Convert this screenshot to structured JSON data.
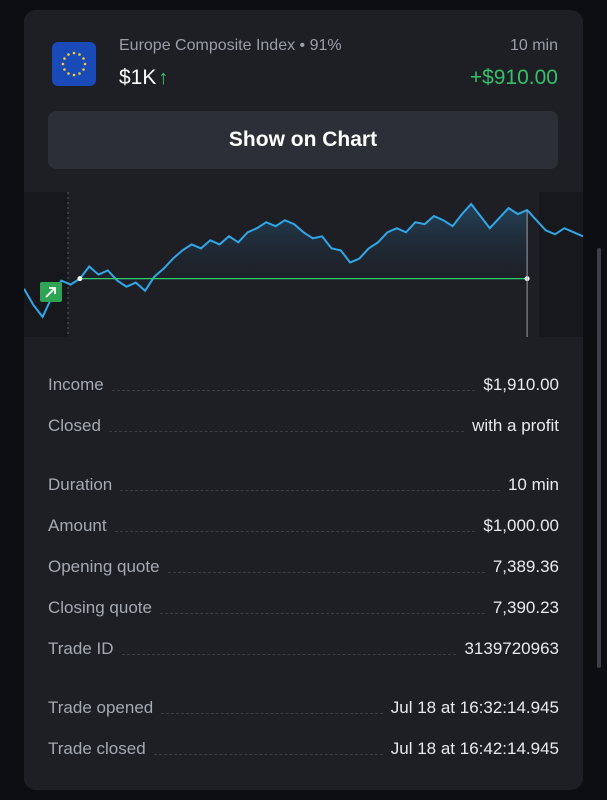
{
  "trade": {
    "asset_name": "Europe Composite Index • 91%",
    "amount_short": "$1K",
    "arrow": "↑",
    "duration": "10 min",
    "profit": "+$910.00",
    "icon": "eu-flag-icon"
  },
  "actions": {
    "show_chart": "Show on Chart"
  },
  "chart_data": {
    "type": "line",
    "title": "",
    "xlabel": "",
    "ylabel": "",
    "direction_badge": "arrow-up-right-icon",
    "line_color": "#2fa7e8",
    "entry_line_color": "#2ecc71",
    "series": [
      {
        "values": [
          7389.0,
          7388.2,
          7387.6,
          7388.6,
          7389.4,
          7389.2,
          7389.5,
          7390.1,
          7389.7,
          7389.9,
          7389.4,
          7389.1,
          7389.3,
          7388.9,
          7389.6,
          7390.0,
          7390.5,
          7390.9,
          7391.2,
          7391.0,
          7391.4,
          7391.2,
          7391.6,
          7391.3,
          7391.8,
          7392.0,
          7392.3,
          7392.1,
          7392.4,
          7392.2,
          7391.8,
          7391.5,
          7391.6,
          7391.0,
          7390.9,
          7390.3,
          7390.5,
          7391.0,
          7391.3,
          7391.8,
          7392.0,
          7391.8,
          7392.3,
          7392.2,
          7392.6,
          7392.4,
          7392.1,
          7392.7,
          7393.2,
          7392.6,
          7392.0,
          7392.5,
          7393.0,
          7392.7,
          7392.9,
          7392.4,
          7391.9,
          7391.7,
          7392.0,
          7391.8,
          7391.6
        ]
      }
    ],
    "entry_value": 7389.36,
    "close_value": 7390.23
  },
  "details": {
    "income_label": "Income",
    "income_value": "$1,910.00",
    "closed_label": "Closed",
    "closed_value": "with a profit",
    "duration_label": "Duration",
    "duration_value": "10 min",
    "amount_label": "Amount",
    "amount_value": "$1,000.00",
    "opening_label": "Opening quote",
    "opening_value": "7,389.36",
    "closing_label": "Closing quote",
    "closing_value": "7,390.23",
    "tradeid_label": "Trade ID",
    "tradeid_value": "3139720963",
    "opened_label": "Trade opened",
    "opened_value": "Jul 18 at 16:32:14.945",
    "closedat_label": "Trade closed",
    "closedat_value": "Jul 18 at 16:42:14.945"
  }
}
